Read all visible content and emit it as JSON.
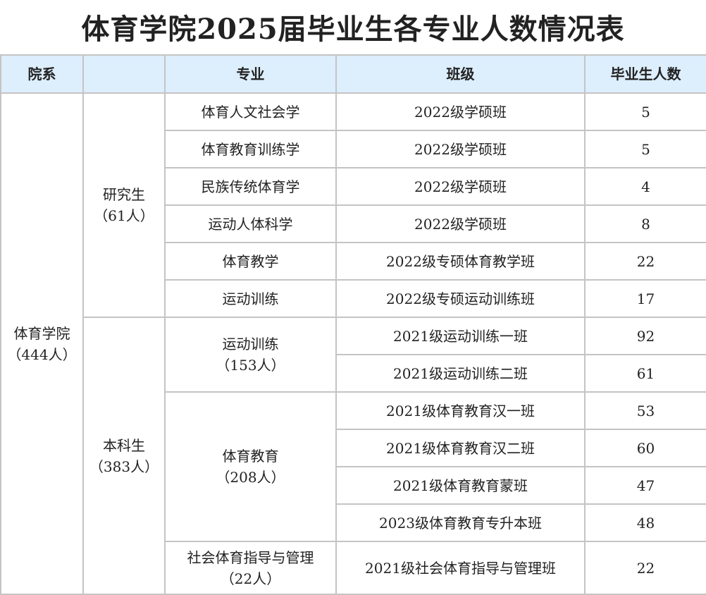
{
  "title": "体育学院2025届毕业生各专业人数情况表",
  "headers": [
    "院系",
    "",
    "专业",
    "班级",
    "毕业生人数"
  ],
  "college": {
    "name": "体育学院",
    "count": "（444人）"
  },
  "levels": [
    {
      "name": "研究生",
      "count": "（61人）"
    },
    {
      "name": "本科生",
      "count": "（383人）"
    }
  ],
  "majors_grouped": [
    {
      "name": "运动训练",
      "count": "（153人）"
    },
    {
      "name": "体育教育",
      "count": "（208人）"
    },
    {
      "name": "社会体育指导与管理",
      "count": "（22人）"
    }
  ],
  "rows": [
    {
      "major": "体育人文社会学",
      "class": "2022级学硕班",
      "n": "5"
    },
    {
      "major": "体育教育训练学",
      "class": "2022级学硕班",
      "n": "5"
    },
    {
      "major": "民族传统体育学",
      "class": "2022级学硕班",
      "n": "4"
    },
    {
      "major": "运动人体科学",
      "class": "2022级学硕班",
      "n": "8"
    },
    {
      "major": "体育教学",
      "class": "2022级专硕体育教学班",
      "n": "22"
    },
    {
      "major": "运动训练",
      "class": "2022级专硕运动训练班",
      "n": "17"
    },
    {
      "class": "2021级运动训练一班",
      "n": "92"
    },
    {
      "class": "2021级运动训练二班",
      "n": "61"
    },
    {
      "class": "2021级体育教育汉一班",
      "n": "53"
    },
    {
      "class": "2021级体育教育汉二班",
      "n": "60"
    },
    {
      "class": "2021级体育教育蒙班",
      "n": "47"
    },
    {
      "class": "2023级体育教育专升本班",
      "n": "48"
    },
    {
      "class": "2021级社会体育指导与管理班",
      "n": "22"
    }
  ],
  "colors": {
    "header_bg": "#ddeefc",
    "border": "#c4c4c4"
  }
}
